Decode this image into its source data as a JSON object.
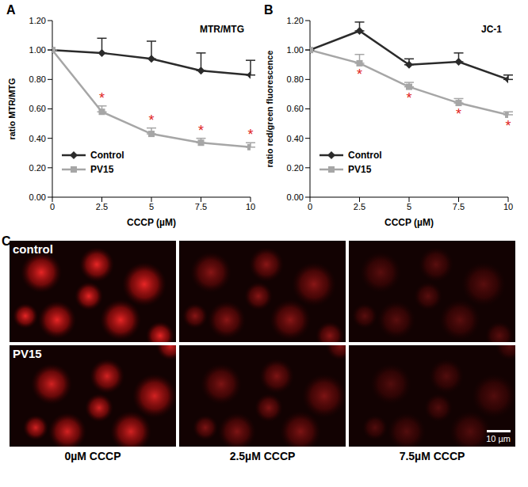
{
  "chart_data": [
    {
      "label": "A",
      "type": "line",
      "title": "MTR/MTG",
      "x_label": "CCCP (µM)",
      "y_label": "ratio MTR/MTG",
      "x": [
        0,
        2.5,
        5,
        7.5,
        10
      ],
      "xlim": [
        0,
        10
      ],
      "xticks": [
        0,
        2.5,
        5,
        7.5,
        10
      ],
      "ylim": [
        0,
        1.2
      ],
      "yticks": [
        {
          "value": 0,
          "label": "0.00"
        },
        {
          "value": 0.2,
          "label": "0.20"
        },
        {
          "value": 0.4,
          "label": "0.40"
        },
        {
          "value": 0.6,
          "label": "0.60"
        },
        {
          "value": 0.8,
          "label": "0.80"
        },
        {
          "value": 1,
          "label": "1.00"
        },
        {
          "value": 1.2,
          "label": "1.20"
        }
      ],
      "legend": "lower left",
      "series": [
        {
          "name": "Control",
          "color": "#2b2b2b",
          "marker": "diamond",
          "values": [
            1.0,
            0.98,
            0.94,
            0.86,
            0.83
          ],
          "error": [
            0,
            0.1,
            0.12,
            0.12,
            0.1
          ]
        },
        {
          "name": "PV15",
          "color": "#a6a6a6",
          "marker": "square",
          "values": [
            1.0,
            0.58,
            0.43,
            0.37,
            0.34
          ],
          "error": [
            0,
            0.04,
            0.04,
            0.03,
            0.03
          ],
          "annotations": [
            null,
            "*",
            "*",
            "*",
            "*"
          ]
        }
      ]
    },
    {
      "label": "B",
      "type": "line",
      "title": "JC-1",
      "x_label": "CCCP (µM)",
      "y_label": "ratio red/green  fluorescence",
      "x": [
        0,
        2.5,
        5,
        7.5,
        10
      ],
      "xlim": [
        0,
        10
      ],
      "xticks": [
        0,
        2.5,
        5,
        7.5,
        10
      ],
      "ylim": [
        0,
        1.2
      ],
      "yticks": [
        {
          "value": 0,
          "label": "0.00"
        },
        {
          "value": 0.2,
          "label": "0.20"
        },
        {
          "value": 0.4,
          "label": "0.40"
        },
        {
          "value": 0.6,
          "label": "0.60"
        },
        {
          "value": 0.8,
          "label": "0.80"
        },
        {
          "value": 1,
          "label": "1.00"
        },
        {
          "value": 1.2,
          "label": "1.20"
        }
      ],
      "legend": "lower left",
      "series": [
        {
          "name": "Control",
          "color": "#2b2b2b",
          "marker": "diamond",
          "values": [
            1.0,
            1.13,
            0.9,
            0.92,
            0.8
          ],
          "error": [
            0,
            0.06,
            0.04,
            0.06,
            0.03
          ]
        },
        {
          "name": "PV15",
          "color": "#a6a6a6",
          "marker": "square",
          "values": [
            1.0,
            0.91,
            0.75,
            0.64,
            0.56
          ],
          "error": [
            0,
            0.06,
            0.03,
            0.03,
            0.02
          ],
          "annotations": [
            null,
            "*",
            "*",
            "*",
            "*"
          ]
        }
      ]
    }
  ],
  "panel_c": {
    "label": "C",
    "rows": [
      "control",
      "PV15"
    ],
    "columns": [
      "0µM CCCP",
      "2.5µM CCCP",
      "7.5µM CCCP"
    ],
    "scale_bar": "10 µm"
  }
}
